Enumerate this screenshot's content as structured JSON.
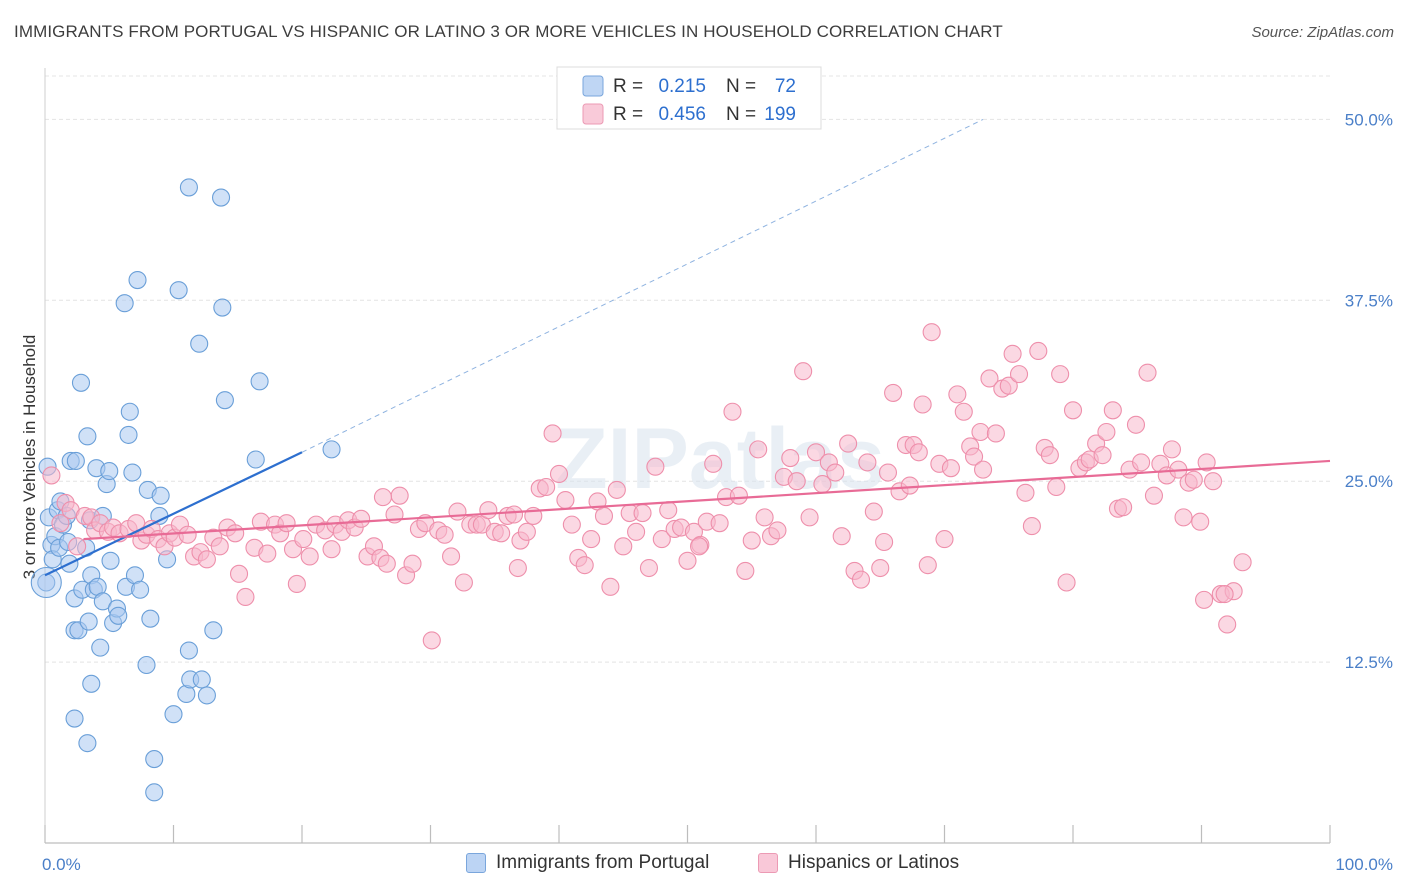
{
  "chart_data": {
    "type": "scatter",
    "title": "IMMIGRANTS FROM PORTUGAL VS HISPANIC OR LATINO 3 OR MORE VEHICLES IN HOUSEHOLD CORRELATION CHART",
    "source": "Source: ZipAtlas.com",
    "ylabel": "3 or more Vehicles in Household",
    "xlabel": "",
    "xlim": [
      0,
      100
    ],
    "ylim": [
      0,
      53
    ],
    "x_ticks": [
      0,
      10,
      20,
      30,
      40,
      50,
      60,
      70,
      80,
      90,
      100
    ],
    "x_tick_labels": [
      {
        "value": 0,
        "label": "0.0%"
      },
      {
        "value": 100,
        "label": "100.0%"
      }
    ],
    "y_tick_labels": [
      {
        "value": 12.5,
        "label": "12.5%"
      },
      {
        "value": 25.0,
        "label": "25.0%"
      },
      {
        "value": 37.5,
        "label": "37.5%"
      },
      {
        "value": 50.0,
        "label": "50.0%"
      }
    ],
    "grid": true,
    "watermark": "ZIPatlas",
    "legend": {
      "placement": "top-center",
      "entries": [
        {
          "r_label": "R =",
          "r_value": "0.215",
          "n_label": "N =",
          "n_value": "72",
          "color": "#a9c8f0"
        },
        {
          "r_label": "R =",
          "r_value": "0.456",
          "n_label": "N =",
          "n_value": "199",
          "color": "#f7b8cc"
        }
      ]
    },
    "series": [
      {
        "name": "Immigrants from Portugal",
        "color": "#a9c8f0",
        "stroke": "#6a9fd8",
        "trend": {
          "x": [
            0,
            20
          ],
          "y": [
            18.5,
            27.0
          ],
          "color": "#2d6fcf",
          "extended_to": [
            73,
            50.0
          ]
        },
        "points": [
          [
            0.1,
            18
          ],
          [
            0.3,
            22.5
          ],
          [
            0.5,
            20.6
          ],
          [
            0.6,
            19.6
          ],
          [
            0.8,
            21.2
          ],
          [
            1.0,
            23.0
          ],
          [
            1.1,
            20.4
          ],
          [
            1.2,
            23.6
          ],
          [
            1.4,
            22.0
          ],
          [
            1.7,
            22.6
          ],
          [
            1.8,
            20.8
          ],
          [
            1.9,
            19.3
          ],
          [
            2.0,
            26.4
          ],
          [
            2.3,
            16.9
          ],
          [
            2.3,
            14.7
          ],
          [
            2.3,
            8.6
          ],
          [
            2.6,
            14.7
          ],
          [
            2.4,
            26.4
          ],
          [
            2.8,
            31.8
          ],
          [
            2.9,
            17.5
          ],
          [
            3.3,
            28.1
          ],
          [
            3.2,
            20.4
          ],
          [
            3.4,
            15.3
          ],
          [
            3.5,
            22.3
          ],
          [
            3.3,
            6.9
          ],
          [
            3.6,
            11.0
          ],
          [
            3.6,
            18.5
          ],
          [
            3.8,
            17.5
          ],
          [
            4.0,
            25.9
          ],
          [
            4.1,
            17.7
          ],
          [
            4.3,
            13.5
          ],
          [
            4.5,
            22.6
          ],
          [
            4.5,
            16.7
          ],
          [
            4.8,
            24.8
          ],
          [
            5.0,
            25.7
          ],
          [
            5.1,
            19.5
          ],
          [
            5.3,
            15.2
          ],
          [
            5.6,
            16.2
          ],
          [
            5.7,
            15.7
          ],
          [
            6.2,
            37.3
          ],
          [
            6.3,
            17.7
          ],
          [
            6.5,
            28.2
          ],
          [
            6.6,
            29.8
          ],
          [
            6.8,
            25.6
          ],
          [
            7.0,
            18.5
          ],
          [
            7.2,
            38.9
          ],
          [
            7.4,
            17.5
          ],
          [
            7.9,
            12.3
          ],
          [
            8.0,
            24.4
          ],
          [
            8.2,
            15.5
          ],
          [
            8.5,
            5.8
          ],
          [
            8.5,
            3.5
          ],
          [
            8.9,
            22.6
          ],
          [
            9.0,
            24.0
          ],
          [
            9.5,
            19.6
          ],
          [
            10.0,
            8.9
          ],
          [
            10.4,
            38.2
          ],
          [
            11.0,
            10.3
          ],
          [
            11.2,
            45.3
          ],
          [
            11.2,
            13.3
          ],
          [
            11.3,
            11.3
          ],
          [
            12.0,
            34.5
          ],
          [
            12.2,
            11.3
          ],
          [
            12.6,
            10.2
          ],
          [
            13.1,
            14.7
          ],
          [
            13.7,
            44.6
          ],
          [
            13.8,
            37.0
          ],
          [
            14.0,
            30.6
          ],
          [
            16.4,
            26.5
          ],
          [
            16.7,
            31.9
          ],
          [
            22.3,
            27.2
          ],
          [
            0.2,
            26.0
          ]
        ]
      },
      {
        "name": "Hispanics or Latinos",
        "color": "#f7b8cc",
        "stroke": "#ee8fab",
        "trend": {
          "x": [
            3,
            100
          ],
          "y": [
            21.0,
            26.4
          ],
          "color": "#e86b96"
        },
        "points": [
          [
            0.5,
            25.4
          ],
          [
            1.2,
            22.1
          ],
          [
            1.6,
            23.5
          ],
          [
            2.0,
            23.0
          ],
          [
            2.5,
            20.5
          ],
          [
            3.1,
            22.6
          ],
          [
            3.6,
            22.5
          ],
          [
            3.9,
            21.6
          ],
          [
            4.3,
            22.1
          ],
          [
            4.9,
            21.5
          ],
          [
            5.3,
            21.8
          ],
          [
            5.8,
            21.4
          ],
          [
            6.5,
            21.7
          ],
          [
            7.1,
            22.1
          ],
          [
            7.5,
            20.9
          ],
          [
            7.9,
            21.3
          ],
          [
            8.3,
            21.7
          ],
          [
            8.8,
            21.0
          ],
          [
            9.3,
            20.5
          ],
          [
            9.7,
            21.4
          ],
          [
            10.1,
            21.1
          ],
          [
            10.5,
            22.0
          ],
          [
            11.1,
            21.3
          ],
          [
            11.6,
            19.8
          ],
          [
            12.1,
            20.1
          ],
          [
            12.6,
            19.6
          ],
          [
            13.1,
            21.1
          ],
          [
            13.6,
            20.5
          ],
          [
            14.2,
            21.8
          ],
          [
            14.8,
            21.4
          ],
          [
            15.1,
            18.6
          ],
          [
            15.6,
            17.0
          ],
          [
            16.3,
            20.4
          ],
          [
            16.8,
            22.2
          ],
          [
            17.3,
            20.0
          ],
          [
            17.9,
            22.0
          ],
          [
            18.3,
            21.4
          ],
          [
            18.8,
            22.1
          ],
          [
            19.3,
            20.3
          ],
          [
            19.6,
            17.9
          ],
          [
            20.1,
            21.0
          ],
          [
            20.6,
            19.8
          ],
          [
            21.1,
            22.0
          ],
          [
            21.8,
            21.6
          ],
          [
            22.3,
            20.3
          ],
          [
            22.6,
            22.0
          ],
          [
            23.1,
            21.5
          ],
          [
            23.6,
            22.3
          ],
          [
            24.1,
            21.8
          ],
          [
            24.6,
            22.4
          ],
          [
            25.1,
            19.8
          ],
          [
            25.6,
            20.5
          ],
          [
            26.1,
            19.7
          ],
          [
            26.6,
            19.3
          ],
          [
            27.2,
            22.7
          ],
          [
            27.6,
            24.0
          ],
          [
            28.1,
            18.5
          ],
          [
            28.6,
            19.3
          ],
          [
            29.1,
            21.7
          ],
          [
            29.6,
            22.1
          ],
          [
            30.1,
            14.0
          ],
          [
            30.6,
            21.6
          ],
          [
            31.1,
            21.3
          ],
          [
            31.6,
            19.8
          ],
          [
            32.1,
            22.9
          ],
          [
            32.6,
            18.0
          ],
          [
            33.1,
            22.0
          ],
          [
            33.6,
            22.0
          ],
          [
            34.0,
            22.0
          ],
          [
            34.5,
            23.0
          ],
          [
            35.0,
            21.5
          ],
          [
            35.5,
            21.4
          ],
          [
            36.0,
            22.6
          ],
          [
            36.5,
            22.7
          ],
          [
            37.0,
            20.9
          ],
          [
            37.5,
            21.5
          ],
          [
            38.0,
            22.6
          ],
          [
            38.5,
            24.5
          ],
          [
            39.0,
            24.6
          ],
          [
            39.5,
            28.3
          ],
          [
            40.0,
            25.5
          ],
          [
            40.5,
            23.7
          ],
          [
            41.0,
            22.0
          ],
          [
            41.5,
            19.7
          ],
          [
            42.0,
            19.2
          ],
          [
            42.5,
            21.0
          ],
          [
            43.0,
            23.6
          ],
          [
            43.5,
            22.6
          ],
          [
            44.0,
            17.7
          ],
          [
            44.5,
            24.4
          ],
          [
            45.0,
            20.5
          ],
          [
            45.5,
            22.8
          ],
          [
            46.0,
            21.5
          ],
          [
            46.5,
            22.8
          ],
          [
            47.0,
            19.0
          ],
          [
            47.5,
            26.0
          ],
          [
            48.0,
            21.0
          ],
          [
            48.5,
            23.0
          ],
          [
            49.0,
            21.7
          ],
          [
            49.5,
            21.8
          ],
          [
            50.0,
            19.5
          ],
          [
            50.5,
            21.5
          ],
          [
            51.0,
            20.6
          ],
          [
            51.5,
            22.2
          ],
          [
            52.0,
            26.2
          ],
          [
            52.5,
            22.1
          ],
          [
            53.0,
            23.9
          ],
          [
            53.5,
            29.8
          ],
          [
            54.0,
            24.0
          ],
          [
            54.5,
            18.8
          ],
          [
            55.0,
            20.9
          ],
          [
            55.5,
            27.2
          ],
          [
            56.0,
            22.5
          ],
          [
            56.5,
            21.2
          ],
          [
            57.0,
            21.6
          ],
          [
            57.5,
            25.3
          ],
          [
            58.0,
            26.6
          ],
          [
            58.5,
            25.0
          ],
          [
            59.0,
            32.6
          ],
          [
            59.5,
            22.5
          ],
          [
            60.0,
            27.0
          ],
          [
            60.5,
            24.8
          ],
          [
            61.0,
            26.3
          ],
          [
            61.5,
            25.6
          ],
          [
            62.0,
            21.2
          ],
          [
            62.5,
            27.6
          ],
          [
            63.0,
            18.8
          ],
          [
            63.5,
            18.2
          ],
          [
            64.0,
            26.3
          ],
          [
            64.5,
            22.9
          ],
          [
            65.0,
            19.0
          ],
          [
            65.3,
            20.8
          ],
          [
            65.6,
            25.6
          ],
          [
            66.0,
            31.1
          ],
          [
            66.5,
            24.3
          ],
          [
            67.0,
            27.5
          ],
          [
            67.3,
            24.7
          ],
          [
            67.6,
            27.5
          ],
          [
            68.0,
            27.0
          ],
          [
            68.3,
            30.3
          ],
          [
            68.7,
            19.2
          ],
          [
            69.0,
            35.3
          ],
          [
            69.6,
            26.2
          ],
          [
            70.0,
            21.0
          ],
          [
            70.5,
            25.9
          ],
          [
            71.0,
            31.0
          ],
          [
            71.5,
            29.8
          ],
          [
            72.0,
            27.4
          ],
          [
            72.3,
            26.7
          ],
          [
            72.8,
            28.4
          ],
          [
            73.0,
            25.8
          ],
          [
            73.5,
            32.1
          ],
          [
            74.0,
            28.3
          ],
          [
            74.5,
            31.4
          ],
          [
            75.0,
            31.6
          ],
          [
            75.3,
            33.8
          ],
          [
            75.8,
            32.4
          ],
          [
            76.3,
            24.2
          ],
          [
            76.8,
            21.9
          ],
          [
            77.3,
            34.0
          ],
          [
            77.8,
            27.3
          ],
          [
            78.2,
            26.8
          ],
          [
            78.7,
            24.6
          ],
          [
            79.0,
            32.4
          ],
          [
            79.5,
            18.0
          ],
          [
            80.0,
            29.9
          ],
          [
            80.5,
            25.9
          ],
          [
            81.0,
            26.3
          ],
          [
            81.3,
            26.5
          ],
          [
            81.8,
            27.6
          ],
          [
            82.3,
            26.8
          ],
          [
            82.6,
            28.4
          ],
          [
            83.1,
            29.9
          ],
          [
            83.5,
            23.1
          ],
          [
            83.9,
            23.2
          ],
          [
            84.4,
            25.8
          ],
          [
            84.9,
            28.9
          ],
          [
            85.3,
            26.3
          ],
          [
            85.8,
            32.5
          ],
          [
            86.3,
            24.0
          ],
          [
            86.8,
            26.2
          ],
          [
            87.3,
            25.4
          ],
          [
            87.7,
            27.2
          ],
          [
            88.2,
            25.8
          ],
          [
            88.6,
            22.5
          ],
          [
            89.0,
            24.9
          ],
          [
            89.4,
            25.1
          ],
          [
            89.9,
            22.2
          ],
          [
            90.4,
            26.3
          ],
          [
            90.9,
            25.0
          ],
          [
            91.5,
            17.2
          ],
          [
            92.0,
            15.1
          ],
          [
            92.5,
            17.4
          ],
          [
            93.2,
            19.4
          ],
          [
            91.8,
            17.2
          ],
          [
            90.2,
            16.8
          ],
          [
            50.9,
            20.5
          ],
          [
            26.3,
            23.9
          ],
          [
            36.8,
            19.0
          ]
        ]
      }
    ]
  }
}
